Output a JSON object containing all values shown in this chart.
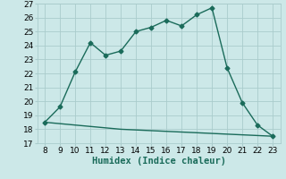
{
  "x": [
    8,
    9,
    10,
    11,
    12,
    13,
    14,
    15,
    16,
    17,
    18,
    19,
    20,
    21,
    22,
    23
  ],
  "y_upper": [
    18.5,
    19.6,
    22.1,
    24.2,
    23.3,
    23.6,
    25.0,
    25.3,
    25.8,
    25.4,
    26.2,
    26.7,
    22.4,
    19.9,
    18.3,
    17.5
  ],
  "y_lower": [
    18.5,
    18.4,
    18.3,
    18.2,
    18.1,
    18.0,
    17.95,
    17.9,
    17.85,
    17.8,
    17.75,
    17.7,
    17.65,
    17.6,
    17.55,
    17.5
  ],
  "line_color": "#1a6b5a",
  "bg_color": "#cce8e8",
  "grid_color": "#aacccc",
  "xlabel": "Humidex (Indice chaleur)",
  "xlim": [
    7.5,
    23.5
  ],
  "ylim": [
    17,
    27
  ],
  "yticks": [
    17,
    18,
    19,
    20,
    21,
    22,
    23,
    24,
    25,
    26,
    27
  ],
  "xticks": [
    8,
    9,
    10,
    11,
    12,
    13,
    14,
    15,
    16,
    17,
    18,
    19,
    20,
    21,
    22,
    23
  ],
  "marker": "D",
  "markersize": 2.5,
  "linewidth": 1.0,
  "xlabel_fontsize": 7.5,
  "tick_fontsize": 6.5
}
